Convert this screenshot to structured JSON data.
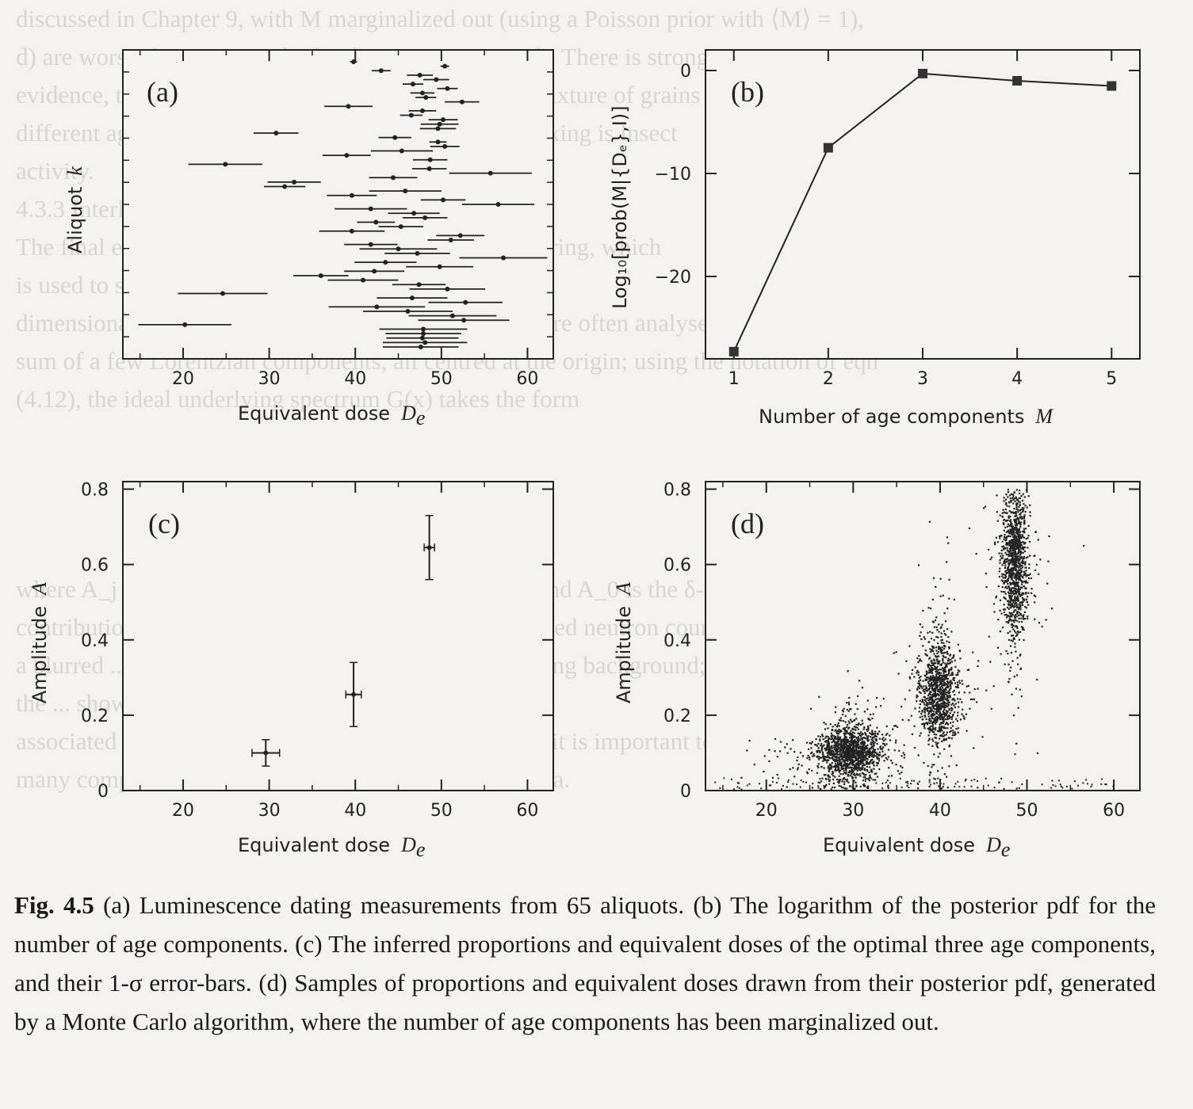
{
  "caption": {
    "label": "Fig. 4.5",
    "text": "(a) Luminescence dating measurements from 65 aliquots. (b) The logarithm of the posterior pdf for the number of age components. (c) The inferred proportions and equivalent doses of the optimal three age components, and their 1-σ error-bars. (d) Samples of proportions and equivalent doses drawn from their posterior pdf, generated by a Monte Carlo algorithm, where the number of age components has been marginalized out."
  },
  "background_text": [
    "discussed in Chapter 9, with M marginalized out (using a Poisson prior with ⟨M⟩ = 1),",
    "d) are worse-than estimated ...] indicates ... Fig. 4.5(d). There is strong",
    "evidence, therefore, that the given aliquot sample ... mixture of grains from three",
    "different ages. One possibility that could ... such ... mixing is insect",
    "activity.",
    "4.3.3   Interlude: what not to compute",
    "The final example in this chapter comes from ... scattering, which",
    "is used to study the structural and dynamic ... one-",
    "dimensional data, such as those shown in Fig. 4.6(a), are often analysed in terms of the",
    "sum of a few Lorentzian components, all centred at the origin; using the notation of eqn",
    "(4.12), the ideal underlying spectrum G(x) takes the form",
    "",
    "",
    "",
    "",
    "where A_j ... the amplitude and width of the jth line, and A_0 is the δ-function",
    "contribution ... scattering. From eqn (4.13), the measured neutron counts are",
    "a blurred ... of this model and subject to a slowly varying background;",
    "the ... shown ... component is",
    "associated with a particular type of molecular motion, it is important to ascertain how",
    "many components there is most evidence for in the data.",
    ""
  ],
  "panels": {
    "a": {
      "label": "(a)",
      "xlabel": "Equivalent dose",
      "xlabel_symbol": "D",
      "xlabel_sub": "e",
      "ylabel": "Aliquot",
      "ylabel_symbol": "k",
      "xlim": [
        13,
        63
      ],
      "xticks": [
        20,
        30,
        40,
        50,
        60
      ],
      "points": [
        [
          39.8,
          0.4
        ],
        [
          50.4,
          0.5
        ],
        [
          43.0,
          1.1
        ],
        [
          47.5,
          1.5
        ],
        [
          49.4,
          1.5
        ],
        [
          46.7,
          1.2
        ],
        [
          50.7,
          1.2
        ],
        [
          47.8,
          1.4
        ],
        [
          48.2,
          1.2
        ],
        [
          52.4,
          2.0
        ],
        [
          39.2,
          2.8
        ],
        [
          47.8,
          1.6
        ],
        [
          46.5,
          1.3
        ],
        [
          50.2,
          1.7
        ],
        [
          49.8,
          2.2
        ],
        [
          49.6,
          2.1
        ],
        [
          30.8,
          2.6
        ],
        [
          44.6,
          1.9
        ],
        [
          49.6,
          1.0
        ],
        [
          50.4,
          1.7
        ],
        [
          45.4,
          3.6
        ],
        [
          39.0,
          2.8
        ],
        [
          48.7,
          2.0
        ],
        [
          24.9,
          4.3
        ],
        [
          48.6,
          2.0
        ],
        [
          55.7,
          4.8
        ],
        [
          44.4,
          2.8
        ],
        [
          32.9,
          3.1
        ],
        [
          31.8,
          2.4
        ],
        [
          45.8,
          4.2
        ],
        [
          39.6,
          2.9
        ],
        [
          50.2,
          2.6
        ],
        [
          56.6,
          4.2
        ],
        [
          41.8,
          4.2
        ],
        [
          46.8,
          3.0
        ],
        [
          48.1,
          2.6
        ],
        [
          42.4,
          2.2
        ],
        [
          45.3,
          2.6
        ],
        [
          39.6,
          3.8
        ],
        [
          52.2,
          2.8
        ],
        [
          51.1,
          2.7
        ],
        [
          41.8,
          3.1
        ],
        [
          45.0,
          4.5
        ],
        [
          47.2,
          3.8
        ],
        [
          57.2,
          5.1
        ],
        [
          43.5,
          3.6
        ],
        [
          49.8,
          3.9
        ],
        [
          42.2,
          3.5
        ],
        [
          36.0,
          3.2
        ],
        [
          40.9,
          4.1
        ],
        [
          47.4,
          3.1
        ],
        [
          50.7,
          4.4
        ],
        [
          24.6,
          5.2
        ],
        [
          46.6,
          4.1
        ],
        [
          52.8,
          4.3
        ],
        [
          42.5,
          5.6
        ],
        [
          46.1,
          5.2
        ],
        [
          51.3,
          5.1
        ],
        [
          52.6,
          5.3
        ],
        [
          20.2,
          5.4
        ],
        [
          47.9,
          5.1
        ],
        [
          47.9,
          4.4
        ],
        [
          47.8,
          4.2
        ],
        [
          48.1,
          4.9
        ],
        [
          47.6,
          4.4
        ]
      ]
    },
    "b": {
      "label": "(b)",
      "xlabel": "Number of age components",
      "xlabel_symbol": "M",
      "ylabel": "Log₁₀[prob(M|{Dₑ},I)]",
      "xlim": [
        0.7,
        5.3
      ],
      "ylim": [
        -28,
        2
      ],
      "xticks": [
        1,
        2,
        3,
        4,
        5
      ],
      "yticks": [
        0,
        -10,
        -20
      ],
      "ytick_labels": [
        "0",
        "−10",
        "−20"
      ],
      "points": [
        [
          1,
          -27.3
        ],
        [
          2,
          -7.5
        ],
        [
          3,
          -0.3
        ],
        [
          4,
          -1.0
        ],
        [
          5,
          -1.5
        ]
      ]
    },
    "c": {
      "label": "(c)",
      "xlabel": "Equivalent dose",
      "xlabel_symbol": "D",
      "xlabel_sub": "e",
      "ylabel": "Amplitude",
      "ylabel_symbol": "A",
      "xlim": [
        13,
        63
      ],
      "ylim": [
        0,
        0.82
      ],
      "xticks": [
        20,
        30,
        40,
        50,
        60
      ],
      "yticks": [
        0,
        0.2,
        0.4,
        0.6,
        0.8
      ],
      "ytick_labels": [
        "0",
        "0.2",
        "0.4",
        "0.6",
        "0.8"
      ],
      "points": [
        {
          "x": 29.6,
          "xerr": 1.6,
          "y": 0.1,
          "yerr": 0.035
        },
        {
          "x": 39.8,
          "xerr": 0.9,
          "y": 0.255,
          "yerr": 0.085
        },
        {
          "x": 48.6,
          "xerr": 0.6,
          "y": 0.645,
          "yerr": 0.085
        }
      ]
    },
    "d": {
      "label": "(d)",
      "xlabel": "Equivalent dose",
      "xlabel_symbol": "D",
      "xlabel_sub": "e",
      "ylabel": "Amplitude",
      "ylabel_symbol": "A",
      "xlim": [
        13,
        63
      ],
      "ylim": [
        0,
        0.82
      ],
      "xticks": [
        20,
        30,
        40,
        50,
        60
      ],
      "yticks": [
        0,
        0.2,
        0.4,
        0.6,
        0.8
      ],
      "ytick_labels": [
        "0",
        "0.2",
        "0.4",
        "0.6",
        "0.8"
      ],
      "clusters": [
        {
          "x_center": 29.6,
          "x_spread": 1.8,
          "y_center": 0.1,
          "y_spread": 0.035,
          "samples": 1400
        },
        {
          "x_center": 39.8,
          "x_spread": 1.0,
          "y_center": 0.26,
          "y_spread": 0.07,
          "samples": 1100
        },
        {
          "x_center": 48.6,
          "x_spread": 0.7,
          "y_center": 0.6,
          "y_spread": 0.1,
          "samples": 1200
        }
      ]
    }
  }
}
